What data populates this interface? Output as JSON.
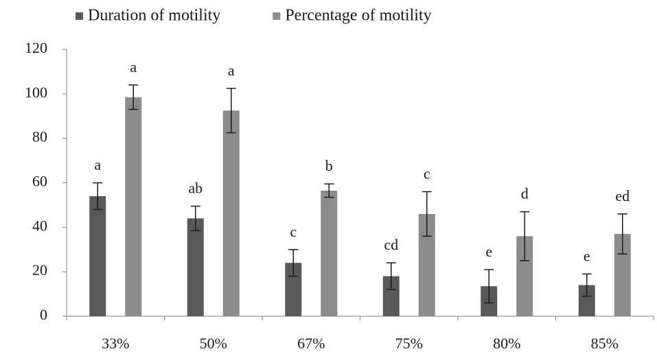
{
  "chart_data": {
    "type": "bar",
    "categories": [
      "33%",
      "50%",
      "67%",
      "75%",
      "80%",
      "85%"
    ],
    "series": [
      {
        "name": "Duration of motility",
        "color": "#595959",
        "values": [
          54,
          44,
          24,
          18,
          13.5,
          14
        ],
        "errors": [
          6,
          5.5,
          6,
          6,
          7.5,
          5
        ],
        "labels": [
          "a",
          "ab",
          "c",
          "cd",
          "e",
          "e"
        ]
      },
      {
        "name": "Percentage of motility",
        "color": "#8c8c8c",
        "values": [
          98.5,
          92.5,
          56.5,
          46,
          36,
          37
        ],
        "errors": [
          5.5,
          10,
          3,
          10,
          11,
          9
        ],
        "labels": [
          "a",
          "a",
          "b",
          "c",
          "d",
          "ed"
        ]
      }
    ],
    "ylim": [
      0,
      120
    ],
    "yticks": [
      0,
      20,
      40,
      60,
      80,
      100,
      120
    ],
    "grid": false,
    "legend": "top"
  }
}
